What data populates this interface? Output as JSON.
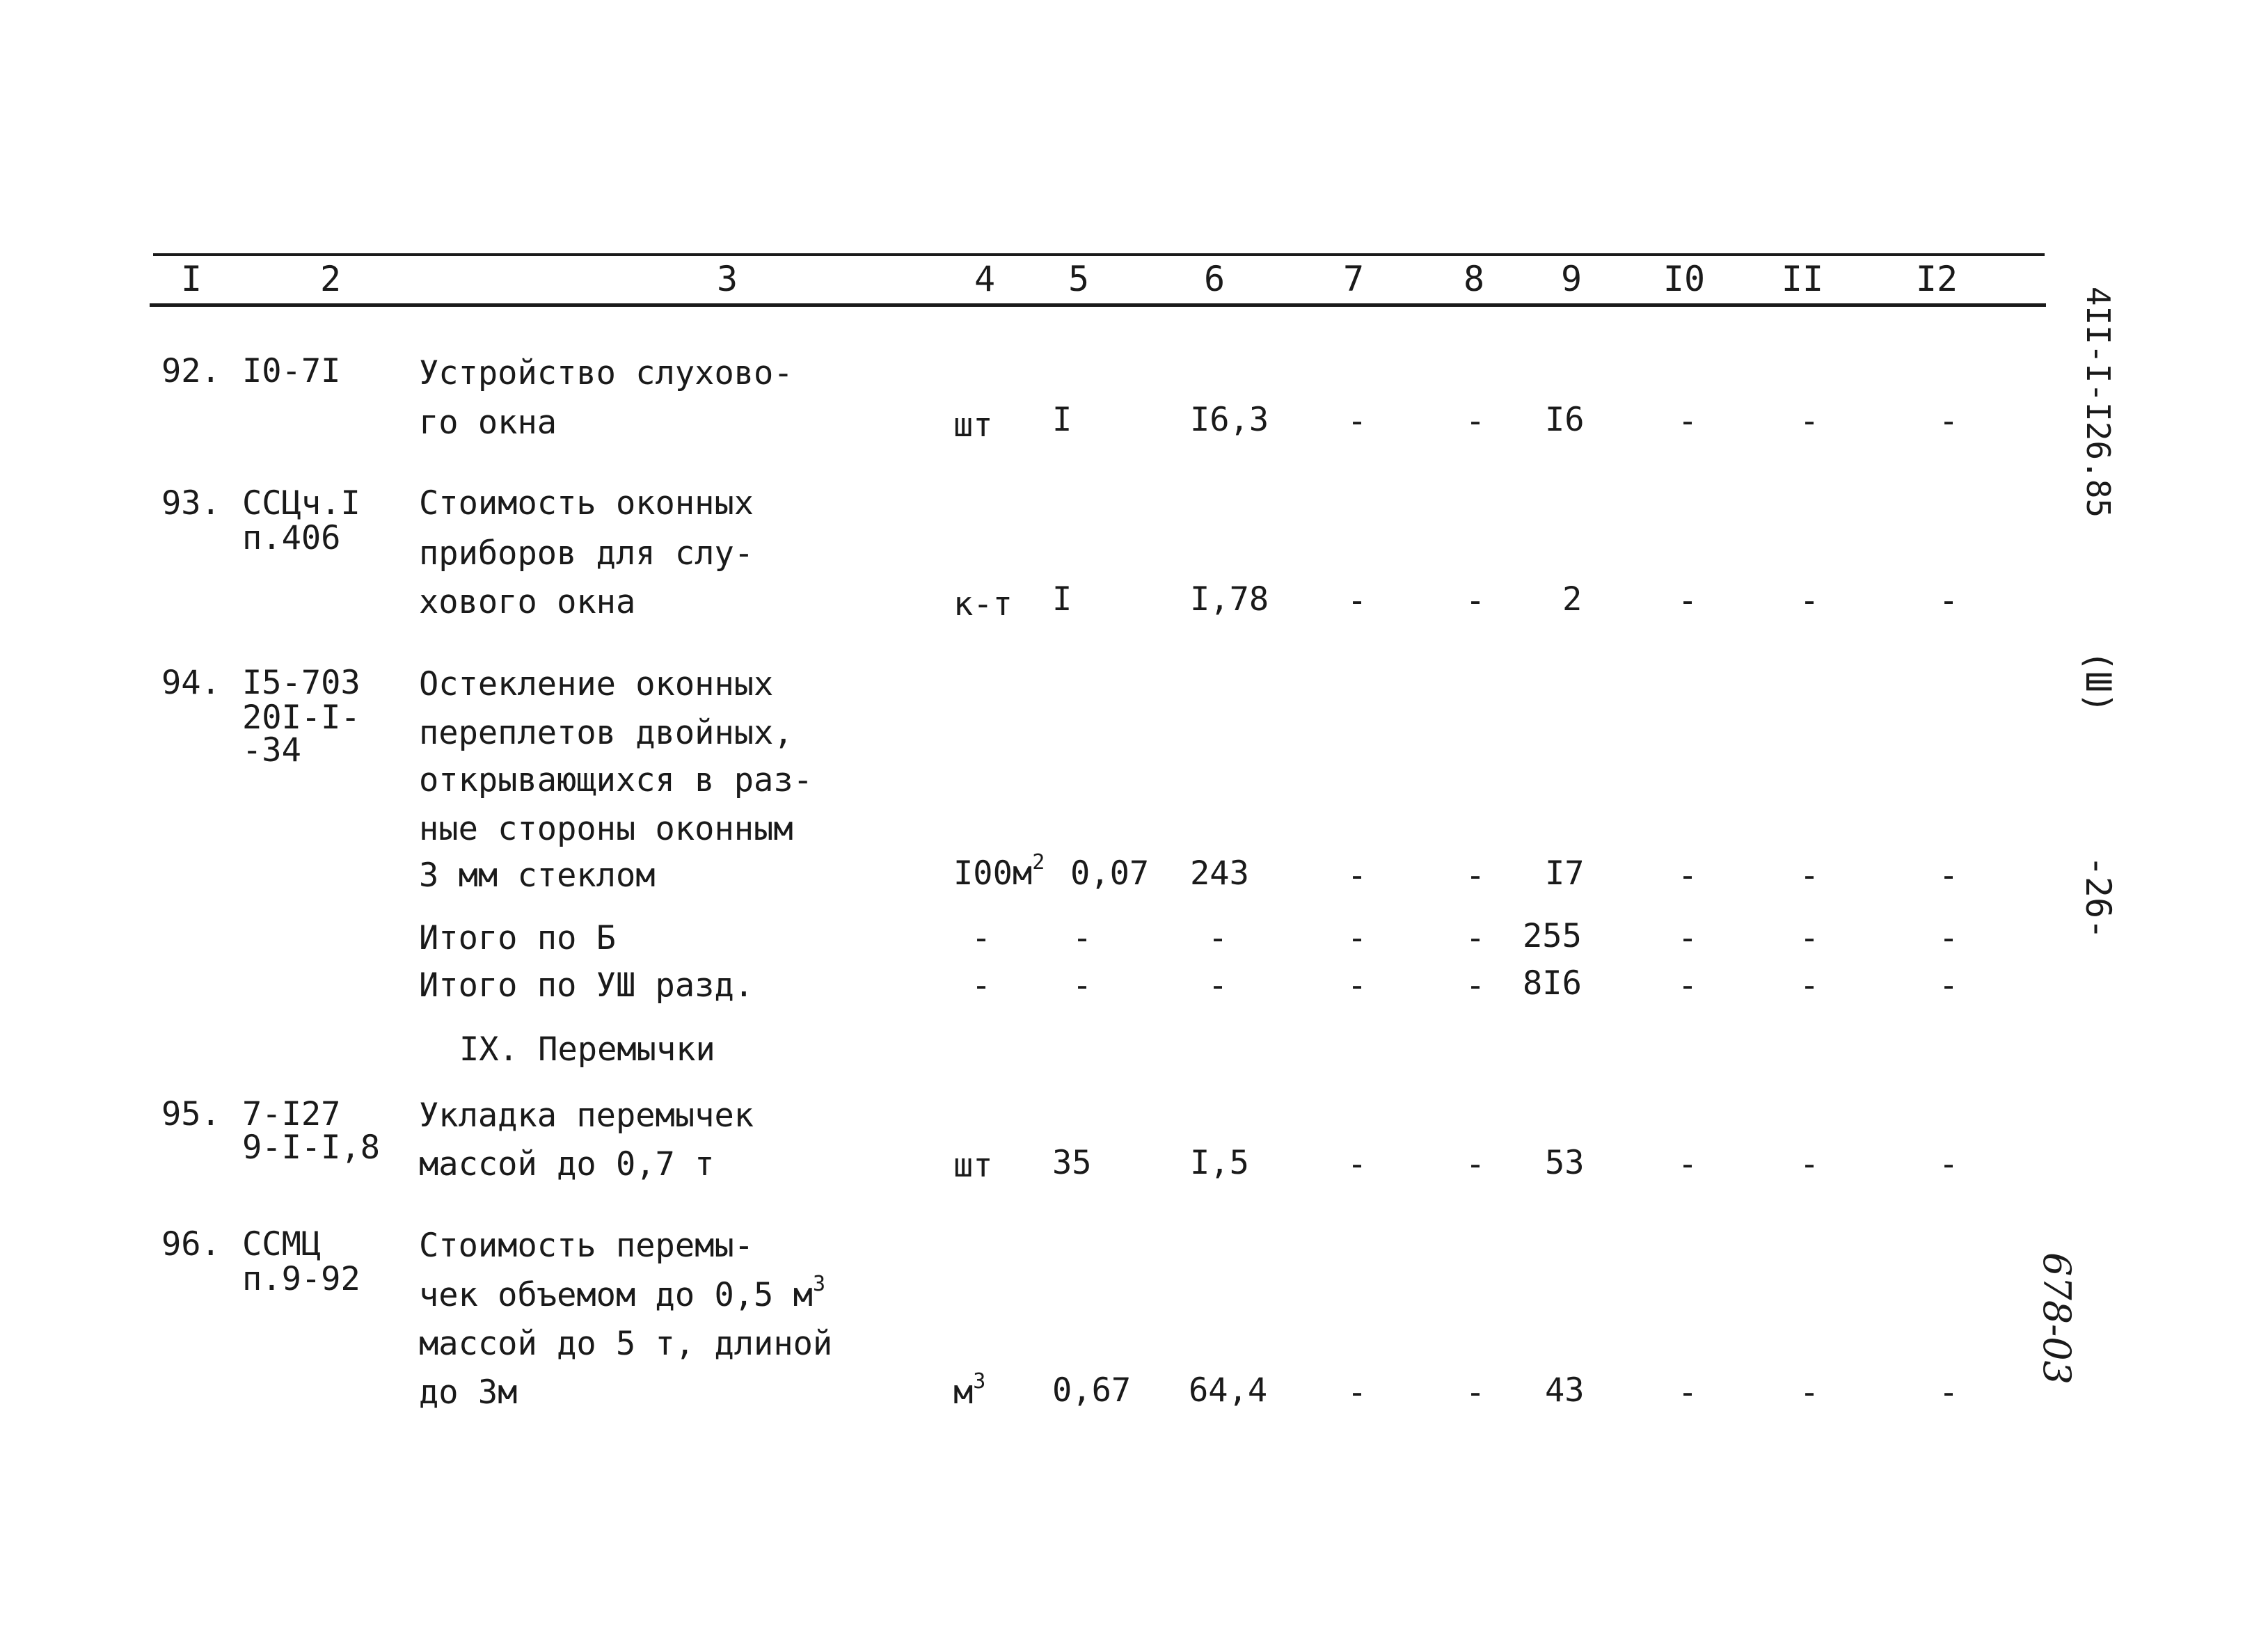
{
  "header_columns": [
    "I",
    "2",
    "3",
    "4",
    "5",
    "6",
    "7",
    "8",
    "9",
    "I0",
    "II",
    "I2"
  ],
  "rows": [
    {
      "num": "92.",
      "code": [
        "I0-7I"
      ],
      "desc": [
        "Устройство слухово-",
        "го окна"
      ],
      "unit": "шт",
      "unit_sup": "",
      "qty": "I",
      "price": "I6,3",
      "c7": "-",
      "c8": "-",
      "c9": "I6",
      "c10": "-",
      "c11": "-",
      "c12": "-"
    },
    {
      "num": "93.",
      "code": [
        "ССЦч.I",
        "п.406"
      ],
      "desc": [
        "Стоимость оконных",
        "приборов для слу-",
        "хового окна"
      ],
      "unit": "к-т",
      "unit_sup": "",
      "qty": "I",
      "price": "I,78",
      "c7": "-",
      "c8": "-",
      "c9": "2",
      "c10": "-",
      "c11": "-",
      "c12": "-"
    },
    {
      "num": "94.",
      "code": [
        "I5-703",
        "20I-I-",
        "-34"
      ],
      "desc": [
        "Остекление оконных",
        "переплетов двойных,",
        "открывающихся в раз-",
        "ные стороны оконным",
        "3 мм стеклом"
      ],
      "unit": "I00м",
      "unit_sup": "2",
      "qty": "0,07",
      "price": "243",
      "c7": "-",
      "c8": "-",
      "c9": "I7",
      "c10": "-",
      "c11": "-",
      "c12": "-"
    }
  ],
  "totals": [
    {
      "label": "Итого по Б",
      "c4": "-",
      "c5": "-",
      "c6": "-",
      "c7": "-",
      "c8": "-",
      "c9": "255",
      "c10": "-",
      "c11": "-",
      "c12": "-"
    },
    {
      "label": "Итого по УШ разд.",
      "c4": "-",
      "c5": "-",
      "c6": "-",
      "c7": "-",
      "c8": "-",
      "c9": "8I6",
      "c10": "-",
      "c11": "-",
      "c12": "-"
    }
  ],
  "section_title": "IX. Перемычки",
  "rows2": [
    {
      "num": "95.",
      "code": [
        "7-I27",
        "9-I-I,8"
      ],
      "desc": [
        "Укладка перемычек",
        "массой до 0,7 т"
      ],
      "unit": "шт",
      "unit_sup": "",
      "qty": "35",
      "price": "I,5",
      "c7": "-",
      "c8": "-",
      "c9": "53",
      "c10": "-",
      "c11": "-",
      "c12": "-"
    },
    {
      "num": "96.",
      "code": [
        "ССМЦ",
        "п.9-92"
      ],
      "desc": [
        "Стоимость перемы-",
        "чек объемом до 0,5 м",
        "массой до 5 т, длиной",
        "до 3м"
      ],
      "desc_sup": "3",
      "unit": "м",
      "unit_sup": "3",
      "qty": "0,67",
      "price": "64,4",
      "c7": "-",
      "c8": "-",
      "c9": "43",
      "c10": "-",
      "c11": "-",
      "c12": "-"
    }
  ],
  "side": {
    "doc_code": "4II-I-I26.85",
    "section": "(Ш)",
    "page": "-26-",
    "stamp": "678-03"
  }
}
